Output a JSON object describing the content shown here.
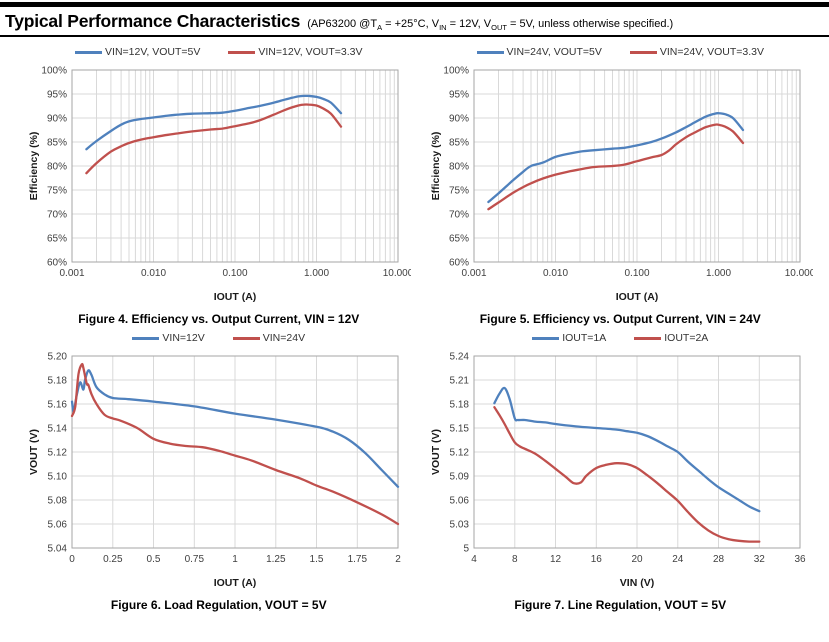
{
  "header": {
    "title": "Typical Performance Characteristics",
    "subtitle_parts": {
      "p1": "(AP63200 @T",
      "s1": "A",
      "p2": " = +25°C, V",
      "s2": "IN",
      "p3": " = 12V, V",
      "s3": "OUT",
      "p4": " = 5V, unless otherwise specified.)"
    }
  },
  "colors": {
    "series_blue": "#4F81BD",
    "series_red": "#C0504D",
    "gridline": "#D9D9D9",
    "plot_border": "#A6A6A6",
    "tick_text": "#404040",
    "header_rule": "#000000"
  },
  "chart_data": [
    {
      "type": "line",
      "caption": "Figure 4. Efficiency vs. Output Current, VIN = 12V",
      "xlabel": "IOUT (A)",
      "ylabel": "Efficiency (%)",
      "x_scale": "log",
      "grid": true,
      "legend_position": "top",
      "xlim": [
        0.001,
        10
      ],
      "ylim": [
        60,
        100
      ],
      "x_ticks": [
        0.001,
        0.01,
        0.1,
        1,
        10
      ],
      "x_tick_labels": [
        "0.001",
        "0.010",
        "0.100",
        "1.000",
        "10.000"
      ],
      "y_ticks": [
        60,
        65,
        70,
        75,
        80,
        85,
        90,
        95,
        100
      ],
      "y_tick_labels": [
        "60%",
        "65%",
        "70%",
        "75%",
        "80%",
        "85%",
        "90%",
        "95%",
        "100%"
      ],
      "series": [
        {
          "name": "VIN=12V, VOUT=5V",
          "color": "#4F81BD",
          "x": [
            0.0015,
            0.002,
            0.003,
            0.004,
            0.005,
            0.007,
            0.01,
            0.015,
            0.02,
            0.03,
            0.05,
            0.07,
            0.1,
            0.15,
            0.2,
            0.3,
            0.4,
            0.5,
            0.6,
            0.7,
            0.8,
            1.0,
            1.2,
            1.5,
            2.0
          ],
          "y": [
            83.5,
            85.2,
            87.3,
            88.6,
            89.3,
            89.8,
            90.1,
            90.5,
            90.7,
            90.9,
            91.0,
            91.1,
            91.5,
            92.1,
            92.5,
            93.2,
            93.8,
            94.2,
            94.5,
            94.6,
            94.6,
            94.4,
            94.0,
            93.2,
            91.0
          ]
        },
        {
          "name": "VIN=12V, VOUT=3.3V",
          "color": "#C0504D",
          "x": [
            0.0015,
            0.002,
            0.003,
            0.004,
            0.005,
            0.007,
            0.01,
            0.015,
            0.02,
            0.03,
            0.05,
            0.07,
            0.1,
            0.15,
            0.2,
            0.3,
            0.4,
            0.5,
            0.6,
            0.7,
            0.8,
            1.0,
            1.2,
            1.5,
            2.0
          ],
          "y": [
            78.5,
            80.6,
            83.0,
            84.1,
            84.8,
            85.5,
            86.0,
            86.5,
            86.8,
            87.2,
            87.6,
            87.8,
            88.3,
            88.9,
            89.5,
            90.7,
            91.6,
            92.2,
            92.6,
            92.8,
            92.8,
            92.6,
            92.0,
            90.9,
            88.2
          ]
        }
      ]
    },
    {
      "type": "line",
      "caption": "Figure 5. Efficiency vs. Output Current, VIN = 24V",
      "xlabel": "IOUT (A)",
      "ylabel": "Efficiency (%)",
      "x_scale": "log",
      "grid": true,
      "legend_position": "top",
      "xlim": [
        0.001,
        10
      ],
      "ylim": [
        60,
        100
      ],
      "x_ticks": [
        0.001,
        0.01,
        0.1,
        1,
        10
      ],
      "x_tick_labels": [
        "0.001",
        "0.010",
        "0.100",
        "1.000",
        "10.000"
      ],
      "y_ticks": [
        60,
        65,
        70,
        75,
        80,
        85,
        90,
        95,
        100
      ],
      "y_tick_labels": [
        "60%",
        "65%",
        "70%",
        "75%",
        "80%",
        "85%",
        "90%",
        "95%",
        "100%"
      ],
      "series": [
        {
          "name": "VIN=24V, VOUT=5V",
          "color": "#4F81BD",
          "x": [
            0.0015,
            0.002,
            0.003,
            0.004,
            0.005,
            0.007,
            0.01,
            0.015,
            0.02,
            0.03,
            0.05,
            0.07,
            0.1,
            0.15,
            0.2,
            0.3,
            0.4,
            0.5,
            0.7,
            0.9,
            1.0,
            1.2,
            1.5,
            2.0
          ],
          "y": [
            72.5,
            74.3,
            77.0,
            78.8,
            80.0,
            80.7,
            81.9,
            82.6,
            83.0,
            83.3,
            83.6,
            83.8,
            84.3,
            85.0,
            85.7,
            87.0,
            88.1,
            89.0,
            90.3,
            90.9,
            91.0,
            90.8,
            90.0,
            87.5
          ]
        },
        {
          "name": "VIN=24V, VOUT=3.3V",
          "color": "#C0504D",
          "x": [
            0.0015,
            0.002,
            0.003,
            0.004,
            0.005,
            0.007,
            0.01,
            0.015,
            0.02,
            0.03,
            0.05,
            0.07,
            0.1,
            0.15,
            0.2,
            0.25,
            0.3,
            0.4,
            0.5,
            0.7,
            0.9,
            1.0,
            1.2,
            1.5,
            2.0
          ],
          "y": [
            71.0,
            72.4,
            74.4,
            75.6,
            76.4,
            77.4,
            78.2,
            78.9,
            79.3,
            79.8,
            80.0,
            80.3,
            81.0,
            81.8,
            82.3,
            83.3,
            84.5,
            86.0,
            86.9,
            88.1,
            88.6,
            88.6,
            88.2,
            87.2,
            84.8
          ]
        }
      ]
    },
    {
      "type": "line",
      "caption": "Figure 6. Load Regulation, VOUT = 5V",
      "xlabel": "IOUT (A)",
      "ylabel": "VOUT (V)",
      "x_scale": "linear",
      "grid": true,
      "legend_position": "top",
      "xlim": [
        0,
        2
      ],
      "ylim": [
        5.04,
        5.2
      ],
      "x_ticks": [
        0,
        0.25,
        0.5,
        0.75,
        1,
        1.25,
        1.5,
        1.75,
        2
      ],
      "x_tick_labels": [
        "0",
        "0.25",
        "0.5",
        "0.75",
        "1",
        "1.25",
        "1.5",
        "1.75",
        "2"
      ],
      "y_ticks": [
        5.04,
        5.06,
        5.08,
        5.1,
        5.12,
        5.14,
        5.16,
        5.18,
        5.2
      ],
      "y_tick_labels": [
        "5.04",
        "5.06",
        "5.08",
        "5.10",
        "5.12",
        "5.14",
        "5.16",
        "5.18",
        "5.20"
      ],
      "series": [
        {
          "name": "VIN=12V",
          "color": "#4F81BD",
          "x": [
            0,
            0.01,
            0.03,
            0.05,
            0.07,
            0.08,
            0.1,
            0.12,
            0.15,
            0.2,
            0.25,
            0.35,
            0.5,
            0.75,
            1.0,
            1.25,
            1.5,
            1.6,
            1.7,
            1.8,
            1.9,
            2.0
          ],
          "y": [
            5.162,
            5.154,
            5.168,
            5.178,
            5.172,
            5.18,
            5.188,
            5.184,
            5.174,
            5.168,
            5.165,
            5.164,
            5.162,
            5.158,
            5.152,
            5.147,
            5.141,
            5.137,
            5.13,
            5.119,
            5.105,
            5.091
          ]
        },
        {
          "name": "VIN=24V",
          "color": "#C0504D",
          "x": [
            0,
            0.02,
            0.04,
            0.06,
            0.07,
            0.09,
            0.1,
            0.12,
            0.15,
            0.2,
            0.25,
            0.3,
            0.4,
            0.5,
            0.6,
            0.7,
            0.8,
            0.9,
            1.0,
            1.1,
            1.25,
            1.4,
            1.5,
            1.6,
            1.75,
            1.9,
            2.0
          ],
          "y": [
            5.15,
            5.158,
            5.185,
            5.193,
            5.19,
            5.177,
            5.176,
            5.168,
            5.16,
            5.151,
            5.148,
            5.146,
            5.14,
            5.131,
            5.127,
            5.125,
            5.124,
            5.121,
            5.117,
            5.113,
            5.105,
            5.098,
            5.092,
            5.087,
            5.078,
            5.068,
            5.06
          ]
        }
      ]
    },
    {
      "type": "line",
      "caption": "Figure 7. Line Regulation, VOUT = 5V",
      "xlabel": "VIN (V)",
      "ylabel": "VOUT (V)",
      "x_scale": "linear",
      "grid": true,
      "legend_position": "top",
      "xlim": [
        4,
        36
      ],
      "ylim": [
        5,
        5.24
      ],
      "x_ticks": [
        4,
        8,
        12,
        16,
        20,
        24,
        28,
        32,
        36
      ],
      "x_tick_labels": [
        "4",
        "8",
        "12",
        "16",
        "20",
        "24",
        "28",
        "32",
        "36"
      ],
      "y_ticks": [
        5,
        5.03,
        5.06,
        5.09,
        5.12,
        5.15,
        5.18,
        5.21,
        5.24
      ],
      "y_tick_labels": [
        "5",
        "5.03",
        "5.06",
        "5.09",
        "5.12",
        "5.15",
        "5.18",
        "5.21",
        "5.24"
      ],
      "series": [
        {
          "name": "IOUT=1A",
          "color": "#4F81BD",
          "x": [
            6,
            6.5,
            7,
            7.5,
            8,
            8.3,
            9,
            10,
            11,
            12,
            14,
            16,
            18,
            19,
            20,
            21,
            22,
            23,
            24,
            25,
            26,
            27,
            28,
            29,
            30,
            31,
            32
          ],
          "y": [
            5.181,
            5.193,
            5.2,
            5.186,
            5.162,
            5.16,
            5.16,
            5.158,
            5.157,
            5.155,
            5.152,
            5.15,
            5.148,
            5.146,
            5.144,
            5.14,
            5.134,
            5.127,
            5.12,
            5.108,
            5.097,
            5.086,
            5.076,
            5.068,
            5.06,
            5.052,
            5.046
          ]
        },
        {
          "name": "IOUT=2A",
          "color": "#C0504D",
          "x": [
            6,
            6.5,
            7,
            7.5,
            8,
            8.5,
            9,
            10,
            11,
            12,
            13,
            13.8,
            14.5,
            15,
            16,
            17,
            18,
            19,
            20,
            21,
            22,
            23,
            24,
            25,
            26,
            27,
            28,
            29,
            30,
            31,
            32
          ],
          "y": [
            5.176,
            5.166,
            5.155,
            5.143,
            5.132,
            5.127,
            5.124,
            5.118,
            5.109,
            5.099,
            5.089,
            5.081,
            5.082,
            5.09,
            5.1,
            5.104,
            5.106,
            5.105,
            5.1,
            5.091,
            5.081,
            5.07,
            5.059,
            5.045,
            5.032,
            5.022,
            5.015,
            5.011,
            5.009,
            5.008,
            5.008
          ]
        }
      ]
    }
  ]
}
